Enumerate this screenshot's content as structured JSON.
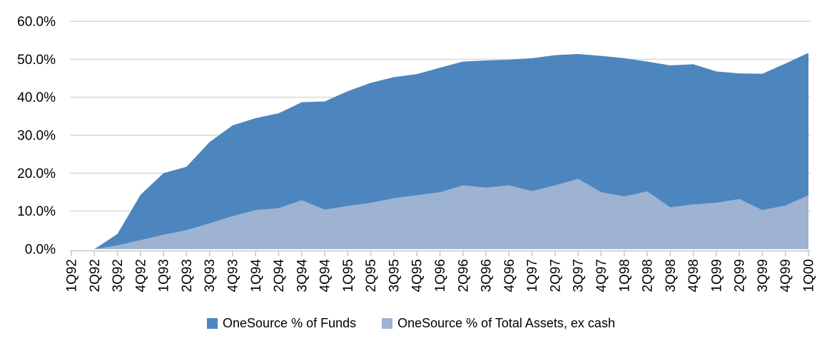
{
  "chart_data": {
    "type": "area",
    "overlapping_series": true,
    "title": "",
    "categories": [
      "1Q92",
      "2Q92",
      "3Q92",
      "4Q92",
      "1Q93",
      "2Q93",
      "3Q93",
      "4Q93",
      "1Q94",
      "2Q94",
      "3Q94",
      "4Q94",
      "1Q95",
      "2Q95",
      "3Q95",
      "4Q95",
      "1Q96",
      "2Q96",
      "3Q96",
      "4Q96",
      "1Q97",
      "2Q97",
      "3Q97",
      "4Q97",
      "1Q98",
      "2Q98",
      "3Q98",
      "4Q98",
      "1Q99",
      "2Q99",
      "3Q99",
      "4Q99",
      "1Q00"
    ],
    "series": [
      {
        "name": "OneSource % of Funds",
        "color": "#4D86BE",
        "values": [
          0,
          0,
          4.0,
          14.3,
          20.0,
          21.7,
          28.2,
          32.6,
          34.5,
          35.8,
          38.7,
          38.9,
          41.6,
          43.8,
          45.3,
          46.1,
          47.8,
          49.4,
          49.7,
          49.9,
          50.3,
          51.1,
          51.4,
          50.9,
          50.3,
          49.4,
          48.4,
          48.7,
          46.8,
          46.3,
          46.2,
          48.9,
          51.7
        ]
      },
      {
        "name": "OneSource % of Total Assets, ex cash",
        "color": "#9EB2D1",
        "values": [
          0,
          0,
          1.0,
          2.4,
          3.8,
          5.0,
          6.8,
          8.7,
          10.3,
          10.8,
          12.9,
          10.4,
          11.4,
          12.2,
          13.4,
          14.2,
          15.0,
          16.8,
          16.2,
          16.8,
          15.3,
          16.8,
          18.5,
          15.0,
          13.9,
          15.2,
          11.0,
          11.8,
          12.2,
          13.2,
          10.3,
          11.5,
          14.2
        ]
      }
    ],
    "y_axis": {
      "min": 0,
      "max": 60,
      "step": 10,
      "tick_labels": [
        "0.0%",
        "10.0%",
        "20.0%",
        "30.0%",
        "40.0%",
        "50.0%",
        "60.0%"
      ]
    },
    "x_axis": {
      "label_rotation_deg": 90
    },
    "grid": true,
    "legend_position": "bottom",
    "colors": {
      "gridline": "#D9D9D9",
      "axis": "#C6C6C6",
      "text": "#000000",
      "background": "#FFFFFF"
    }
  }
}
